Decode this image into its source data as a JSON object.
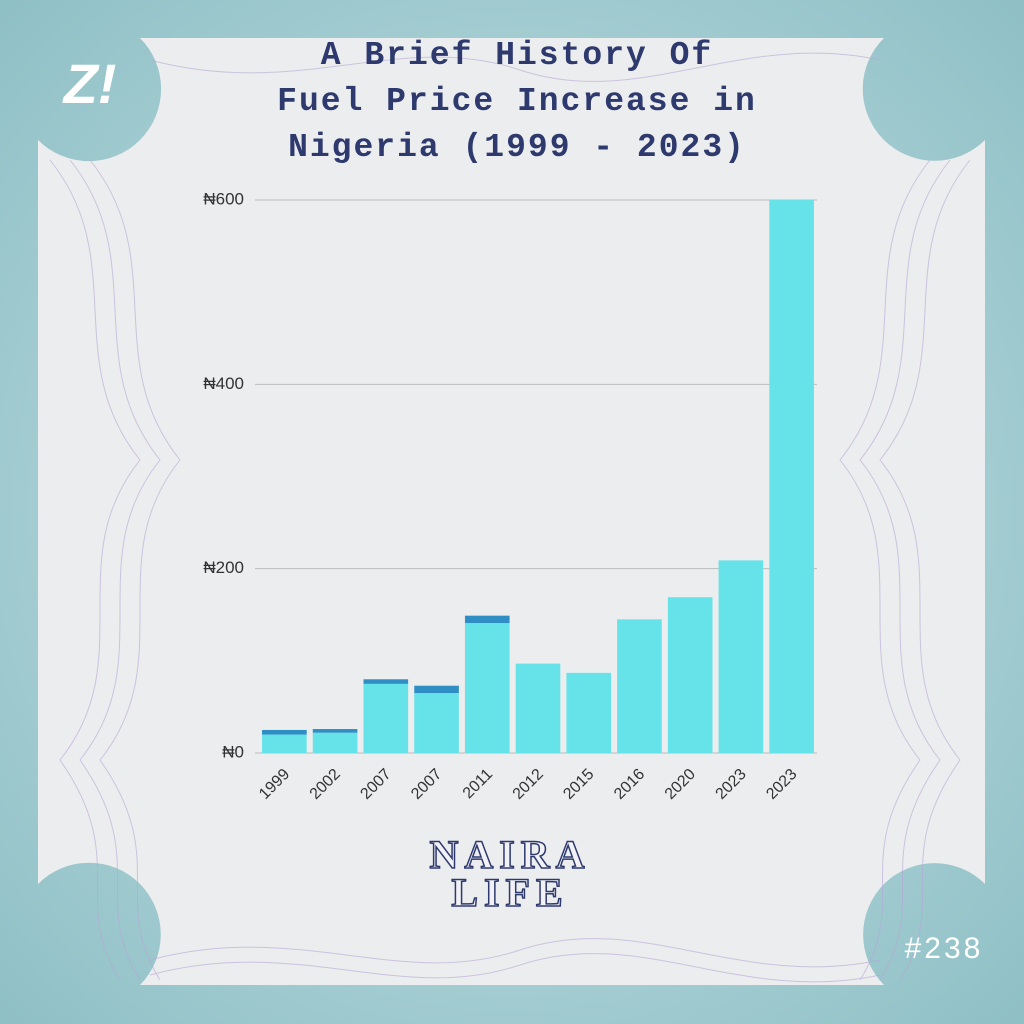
{
  "chart_data": {
    "type": "stacked-bar",
    "title": [
      "A Brief History Of",
      "Fuel Price Increase in",
      "Nigeria (1999 - 2023)"
    ],
    "categories": [
      "1999",
      "2002",
      "2007",
      "2007",
      "2011",
      "2012",
      "2015",
      "2016",
      "2020",
      "2023",
      "2023"
    ],
    "series": [
      {
        "color": "#66e3e8",
        "values": [
          20,
          22,
          75,
          65,
          141,
          97,
          87,
          145,
          169,
          209,
          600
        ]
      },
      {
        "color": "#2f8fc4",
        "values": [
          5,
          4,
          5,
          8,
          8,
          null,
          null,
          null,
          null,
          null,
          null
        ]
      }
    ],
    "ylim": [
      0,
      600
    ],
    "yticks": [
      {
        "value": 0,
        "label": "₦0"
      },
      {
        "value": 200,
        "label": "₦200"
      },
      {
        "value": 400,
        "label": "₦400"
      },
      {
        "value": 600,
        "label": "₦600"
      }
    ],
    "grid": true
  },
  "logo": "Z!",
  "brand": [
    "NAIRA",
    "LIFE"
  ],
  "issue": "#238"
}
